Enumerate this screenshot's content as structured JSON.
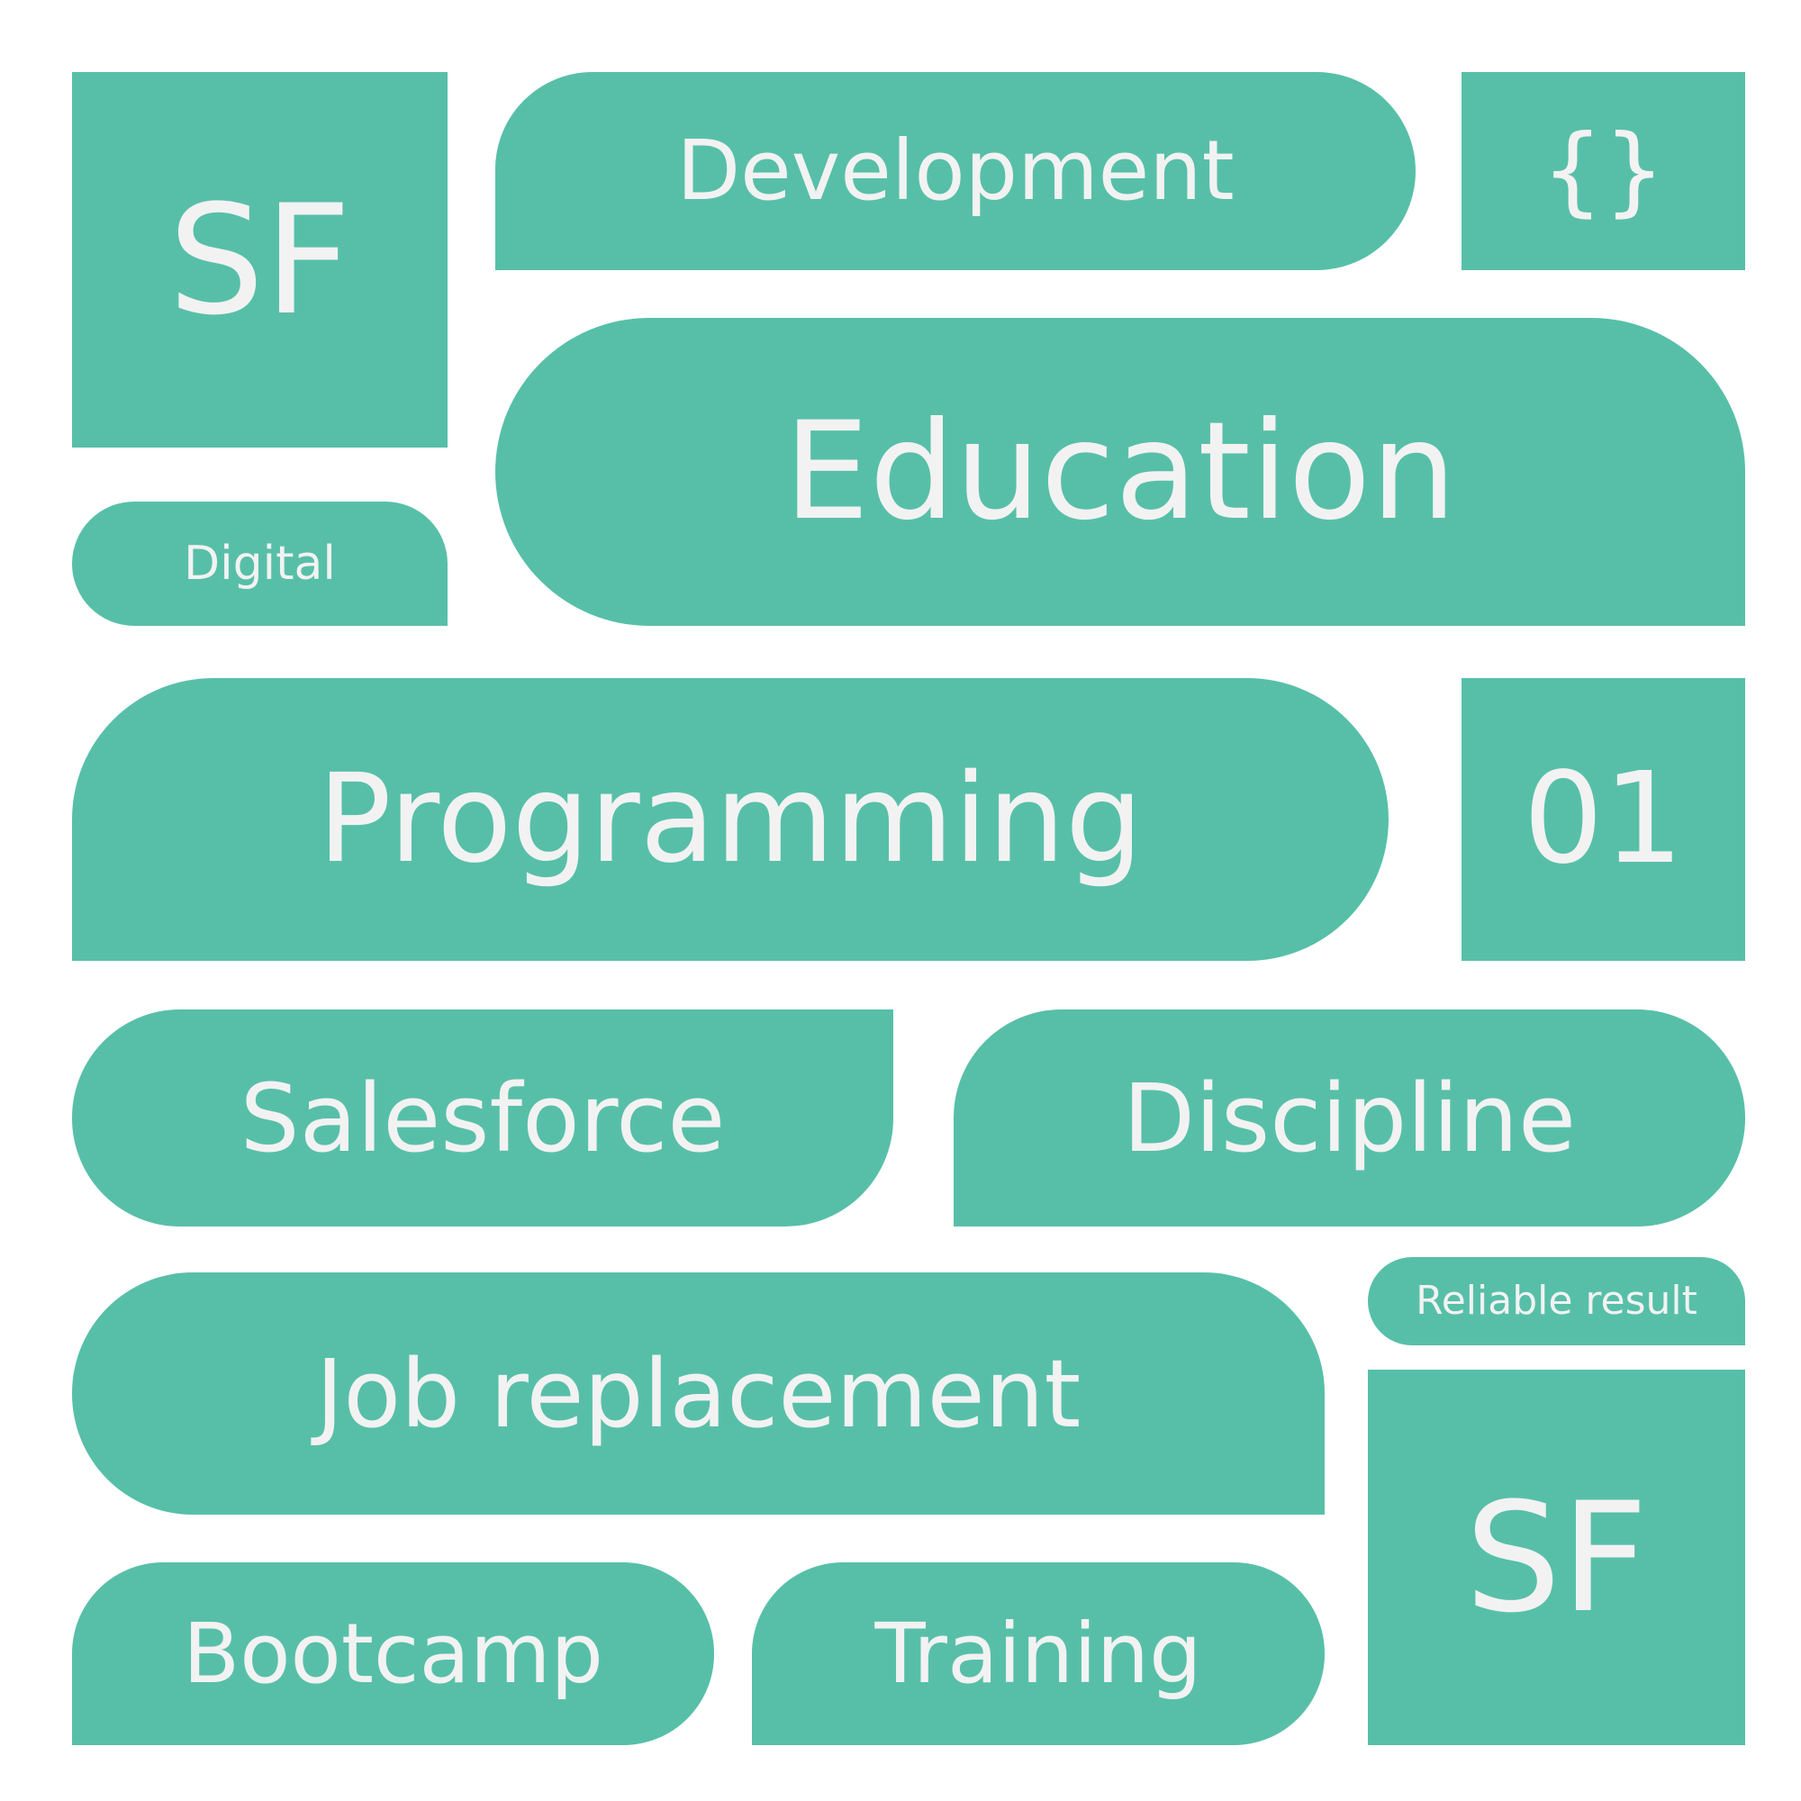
{
  "tiles": {
    "sf_top": "SF",
    "development": "Development",
    "braces": "{}",
    "digital": "Digital",
    "education": "Education",
    "programming": "Programming",
    "number": "01",
    "salesforce": "Salesforce",
    "discipline": "Discipline",
    "job_replacement": "Job replacement",
    "reliable_result": "Reliable result",
    "sf_bottom": "SF",
    "bootcamp": "Bootcamp",
    "training": "Training"
  },
  "colors": {
    "tile_background": "#57bfa8",
    "tile_text": "#f2f2f2",
    "page_background": "#ffffff"
  }
}
